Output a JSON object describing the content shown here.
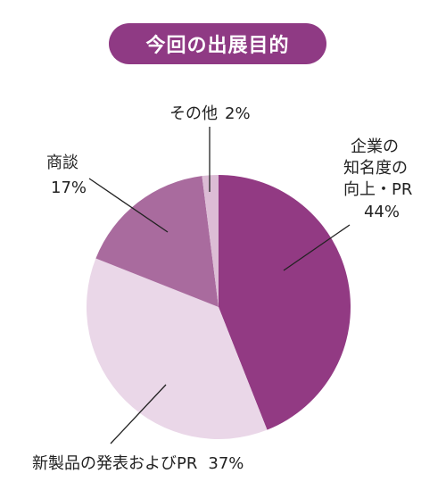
{
  "title": "今回の出展目的",
  "chart_data": {
    "type": "pie",
    "start_angle_deg": 0,
    "direction": "clockwise",
    "slices": [
      {
        "label_lines": [
          "企業の",
          "知名度の",
          "向上・PR"
        ],
        "value": 44,
        "value_text": "44%",
        "color": "#923a83"
      },
      {
        "label_lines": [
          "新製品の発表およびPR"
        ],
        "value": 37,
        "value_text": "37%",
        "color": "#ead7e8"
      },
      {
        "label_lines": [
          "商談"
        ],
        "value": 17,
        "value_text": "17%",
        "color": "#a96b9e"
      },
      {
        "label_lines": [
          "その他"
        ],
        "value": 2,
        "value_text": "2%",
        "color": "#dcbcd5"
      }
    ]
  }
}
